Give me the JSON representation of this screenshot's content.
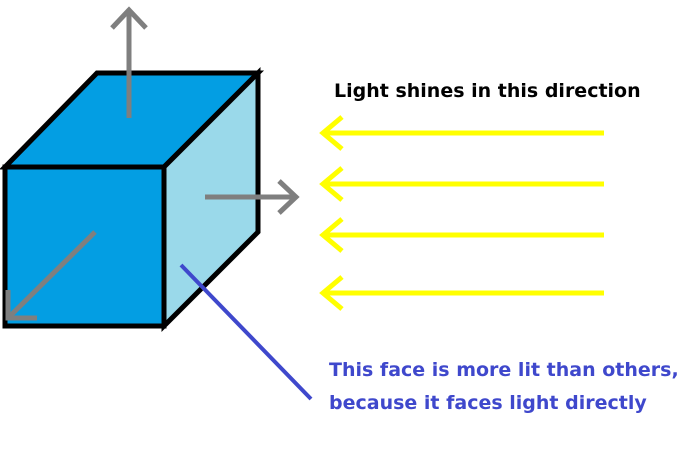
{
  "labels": {
    "light_direction": "Light shines in this direction",
    "face_note_line1": "This face is more lit than others,",
    "face_note_line2": "because it faces light directly"
  },
  "colors": {
    "cube_front": "#039ee3",
    "cube_top": "#039ee3",
    "cube_side": "#9ad9ea",
    "outline": "#000000",
    "normal_arrows": "#7f7f7f",
    "light_rays": "#ffff00",
    "note_text": "#3f48cc",
    "pointer_line": "#3f48cc"
  },
  "light_ray_count": 4
}
